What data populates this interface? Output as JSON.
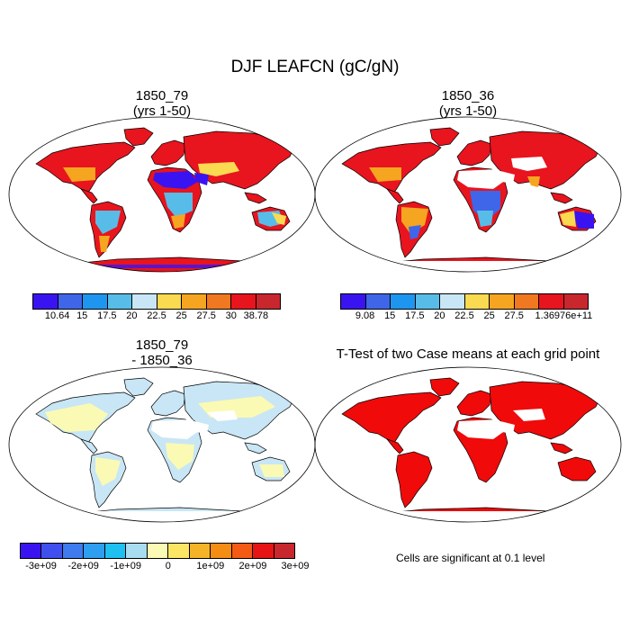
{
  "title": "DJF LEAFCN (gC/gN)",
  "panels": [
    {
      "title_line1": "1850_79",
      "title_line2": "(yrs 1-50)"
    },
    {
      "title_line1": "1850_36",
      "title_line2": "(yrs 1-50)"
    },
    {
      "title_line1": "1850_79",
      "title_line2": "- 1850_36"
    },
    {
      "title_line1": "T-Test of two Case means at each grid point",
      "title_line2": ""
    }
  ],
  "colorbars": {
    "cb1": {
      "colors": [
        "#3a14f0",
        "#3f66e8",
        "#1e96f0",
        "#57bde8",
        "#c8e6f5",
        "#fada50",
        "#f5a520",
        "#f07820",
        "#e8141e",
        "#c8282d"
      ],
      "labels": [
        "10.64",
        "15",
        "17.5",
        "20",
        "22.5",
        "25",
        "27.5",
        "30",
        "38.78"
      ]
    },
    "cb2": {
      "colors": [
        "#3a14f0",
        "#3f66e8",
        "#1e96f0",
        "#57bde8",
        "#c8e6f5",
        "#fada50",
        "#f5a520",
        "#f07820",
        "#e8141e",
        "#c8282d"
      ],
      "labels": [
        "9.08",
        "15",
        "17.5",
        "20",
        "22.5",
        "25",
        "27.5",
        "1.36976e+11"
      ]
    },
    "cb3": {
      "colors": [
        "#3a14f0",
        "#3f50ee",
        "#3f7aee",
        "#2d9ef0",
        "#1ec0f0",
        "#a8dcf0",
        "#fafab4",
        "#fae664",
        "#f5b428",
        "#f58c14",
        "#f55a14",
        "#e61414",
        "#c8282d"
      ],
      "labels": [
        "-3e+09",
        "-2e+09",
        "-1e+09",
        "0",
        "1e+09",
        "2e+09",
        "3e+09"
      ]
    }
  },
  "significance_note": "Cells are significant at 0.1 level",
  "colors": {
    "land_fill_panel1": "#e8141e",
    "land_fill_panel2": "#e8141e",
    "land_fill_panel3": "#c8e6f5",
    "land_fill_panel4": "#f00a0a",
    "coastline": "#000000"
  }
}
